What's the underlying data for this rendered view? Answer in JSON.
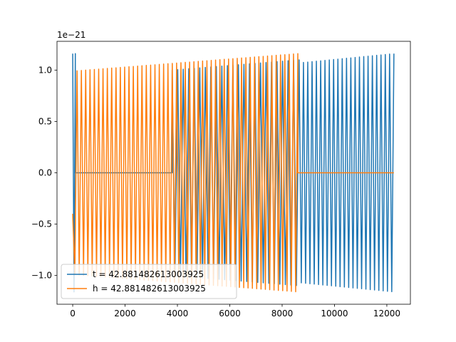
{
  "chart_data": {
    "type": "line",
    "title": "",
    "xlabel": "",
    "ylabel": "",
    "y_scale_label": "1e−21",
    "xlim": [
      -600,
      12900
    ],
    "ylim": [
      -1.28,
      1.28
    ],
    "x_ticks": [
      0,
      2000,
      4000,
      6000,
      8000,
      10000,
      12000
    ],
    "x_tick_labels": [
      "0",
      "2000",
      "4000",
      "6000",
      "8000",
      "10000",
      "12000"
    ],
    "y_ticks": [
      -1.0,
      -0.5,
      0.0,
      0.5,
      1.0
    ],
    "y_tick_labels": [
      "−1.0",
      "−0.5",
      "0.0",
      "0.5",
      "1.0"
    ],
    "grid": false,
    "legend_position": "lower-left",
    "series": [
      {
        "name": "t = 42.881482613003925",
        "color": "#1f77b4",
        "segments": [
          {
            "kind": "oscillation",
            "x_start": 0,
            "x_end": 100,
            "amp_start": 1.16,
            "amp_end": 1.16,
            "cycles": 0.5,
            "phase": 0.5
          },
          {
            "kind": "constant",
            "x_start": 100,
            "x_end": 3800,
            "value": 0.0
          },
          {
            "kind": "oscillation",
            "x_start": 3800,
            "x_end": 8650,
            "amp_start": 1.0,
            "amp_end": 1.1,
            "cycles": 23,
            "phase": 0
          },
          {
            "kind": "oscillation",
            "x_start": 8650,
            "x_end": 12270,
            "amp_start": 1.07,
            "amp_end": 1.16,
            "cycles": 22,
            "phase": 0
          }
        ]
      },
      {
        "name": "h = 42.881482613003925",
        "color": "#ff7f0e",
        "segments": [
          {
            "kind": "oscillation",
            "x_start": 0,
            "x_end": 8600,
            "amp_start": 0.99,
            "amp_end": 1.16,
            "cycles": 52,
            "phase": -0.4
          },
          {
            "kind": "constant",
            "x_start": 8600,
            "x_end": 12270,
            "value": 0.0
          }
        ]
      }
    ]
  }
}
